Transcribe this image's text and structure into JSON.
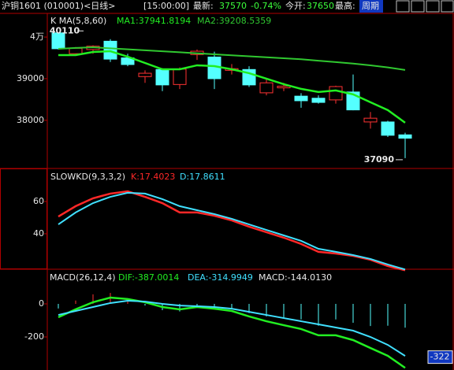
{
  "header": {
    "title": "沪铜1601 (010001)<日线>",
    "time": "[15:00:00]",
    "latest_label": "最新:",
    "latest": "37570",
    "change": "-0.74%",
    "open_label": "今开:",
    "open": "37650",
    "high_label": "最高:",
    "period": "周期"
  },
  "chart_data": [
    {
      "type": "candlestick",
      "label": "K  MA(5,8,60)",
      "open": [
        40100,
        39600,
        39700,
        39900,
        39500,
        39050,
        39220,
        38860,
        39580,
        39520,
        39200,
        39220,
        38660,
        38780,
        38580,
        38530,
        38490,
        38680,
        37960,
        37960,
        37650
      ],
      "high": [
        40110,
        39760,
        39800,
        39950,
        39600,
        39200,
        39250,
        39270,
        39700,
        39650,
        39350,
        39300,
        39000,
        38900,
        38650,
        38600,
        38830,
        39100,
        38200,
        37990,
        37700
      ],
      "low": [
        39700,
        39560,
        39600,
        39400,
        39300,
        38900,
        38700,
        38750,
        39450,
        38750,
        39100,
        38800,
        38600,
        38700,
        38300,
        38400,
        38400,
        38240,
        37800,
        37600,
        37090
      ],
      "close": [
        39720,
        39730,
        39780,
        39470,
        39340,
        39130,
        38850,
        39230,
        39660,
        39000,
        39240,
        38850,
        38900,
        38820,
        38470,
        38430,
        38810,
        38250,
        38050,
        37640,
        37570
      ],
      "up_color": "#ff3232",
      "down_color": "#54ffff",
      "series": [
        {
          "name": "MA1:37941.8194",
          "color": "#22ee22",
          "values": [
            39566,
            39566,
            39642,
            39660,
            39528,
            39377,
            39226,
            39226,
            39321,
            39302,
            39226,
            39132,
            39000,
            38868,
            38755,
            38679,
            38717,
            38623,
            38434,
            38245,
            37941.8194
          ]
        },
        {
          "name": "MA2:39208.5359",
          "color": "#30c830",
          "values": [
            39717,
            39740,
            39755,
            39730,
            39706,
            39682,
            39658,
            39634,
            39610,
            39586,
            39562,
            39538,
            39514,
            39490,
            39466,
            39432,
            39398,
            39364,
            39320,
            39270,
            39208.5359
          ]
        }
      ],
      "ylim": [
        36880,
        40550
      ],
      "yticks": [
        {
          "value": 40000,
          "label": "4万"
        },
        39000,
        38000
      ]
    },
    {
      "type": "line",
      "label": "SLOWKD(9,3,3,2)",
      "series": [
        {
          "name": "K:17.4023",
          "color": "#ff2828",
          "values": [
            50.7,
            57.1,
            62,
            64.9,
            66.3,
            62.9,
            59,
            53.2,
            53.2,
            51.2,
            48.3,
            44.4,
            41,
            37.6,
            33.7,
            28.8,
            27.8,
            26.3,
            23.9,
            20,
            17.4023
          ]
        },
        {
          "name": "D:17.8611",
          "color": "#40e0ff",
          "values": [
            45.8,
            53.2,
            59,
            62.9,
            65.4,
            64.9,
            61.5,
            57.1,
            54.6,
            52.2,
            49.3,
            45.8,
            42.4,
            39,
            35.6,
            30.7,
            28.8,
            26.8,
            24.4,
            21,
            17.8611
          ]
        }
      ],
      "ylim": [
        19,
        79.5
      ],
      "yticks": [
        60,
        40
      ]
    },
    {
      "type": "macd",
      "label": "MACD(26,12,4)",
      "series": [
        {
          "name": "DIF:-387.0014",
          "color": "#22ee22",
          "values": [
            -81,
            -33,
            10,
            38,
            29,
            10,
            -19,
            -33,
            -19,
            -29,
            -43,
            -76,
            -105,
            -129,
            -152,
            -190,
            -190,
            -219,
            -267,
            -314,
            -387.0014
          ]
        },
        {
          "name": "DEA:-314.9949",
          "color": "#40e0ff",
          "values": [
            -67,
            -43,
            -19,
            5,
            19,
            14,
            0,
            -10,
            -14,
            -19,
            -29,
            -48,
            -67,
            -86,
            -105,
            -124,
            -143,
            -162,
            -200,
            -248,
            -314.9949
          ]
        }
      ],
      "bars": {
        "name": "MACD:-144.0130",
        "values": [
          -28,
          20,
          58,
          66,
          20,
          -10,
          -38,
          -46,
          -18,
          -20,
          -28,
          -56,
          -76,
          -86,
          -94,
          -132,
          -94,
          -114,
          -134,
          -132,
          -144.013
        ],
        "up_color": "#ff3232",
        "down_color": "#54ffff"
      },
      "cursor_value": -322,
      "ylim": [
        -400,
        200
      ],
      "yticks": [
        0,
        -200
      ]
    }
  ]
}
